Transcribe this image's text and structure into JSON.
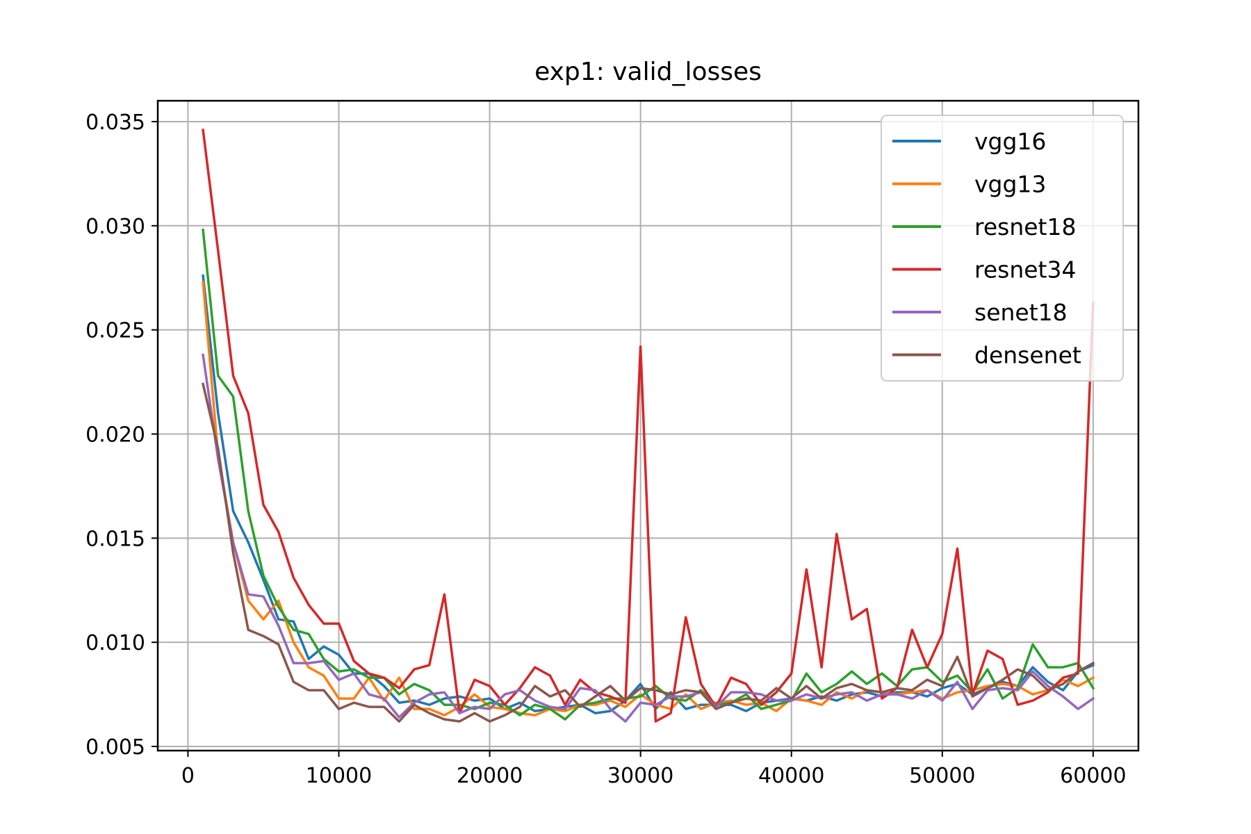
{
  "chart_data": {
    "type": "line",
    "title": "exp1: valid_losses",
    "xlabel": "",
    "ylabel": "",
    "xlim": [
      -2000,
      63000
    ],
    "ylim": [
      0.0048,
      0.036
    ],
    "xticks": [
      0,
      10000,
      20000,
      30000,
      40000,
      50000,
      60000
    ],
    "xtick_labels": [
      "0",
      "10000",
      "20000",
      "30000",
      "40000",
      "50000",
      "60000"
    ],
    "yticks": [
      0.005,
      0.01,
      0.015,
      0.02,
      0.025,
      0.03,
      0.035
    ],
    "ytick_labels": [
      "0.005",
      "0.010",
      "0.015",
      "0.020",
      "0.025",
      "0.030",
      "0.035"
    ],
    "grid": true,
    "legend_position": "top-right",
    "x": [
      1000,
      2000,
      3000,
      4000,
      5000,
      6000,
      7000,
      8000,
      9000,
      10000,
      11000,
      12000,
      13000,
      14000,
      15000,
      16000,
      17000,
      18000,
      19000,
      20000,
      21000,
      22000,
      23000,
      24000,
      25000,
      26000,
      27000,
      28000,
      29000,
      30000,
      31000,
      32000,
      33000,
      34000,
      35000,
      36000,
      37000,
      38000,
      39000,
      40000,
      41000,
      42000,
      43000,
      44000,
      45000,
      46000,
      47000,
      48000,
      49000,
      50000,
      51000,
      52000,
      53000,
      54000,
      55000,
      56000,
      57000,
      58000,
      59000,
      60000
    ],
    "series": [
      {
        "name": "vgg16",
        "color": "#1f77b4",
        "values": [
          0.0276,
          0.021,
          0.0163,
          0.0148,
          0.013,
          0.0111,
          0.011,
          0.0092,
          0.0098,
          0.0094,
          0.0085,
          0.0085,
          0.0079,
          0.0071,
          0.0072,
          0.007,
          0.0073,
          0.0074,
          0.0072,
          0.0073,
          0.0068,
          0.0071,
          0.0067,
          0.0068,
          0.0069,
          0.007,
          0.0066,
          0.0067,
          0.0072,
          0.008,
          0.0068,
          0.0076,
          0.0068,
          0.007,
          0.007,
          0.007,
          0.0067,
          0.0071,
          0.0072,
          0.0073,
          0.0072,
          0.0074,
          0.0072,
          0.0075,
          0.0076,
          0.0074,
          0.0076,
          0.0076,
          0.0074,
          0.0078,
          0.008,
          0.0075,
          0.0078,
          0.0081,
          0.0079,
          0.0088,
          0.0081,
          0.0077,
          0.0086,
          0.0089
        ]
      },
      {
        "name": "vgg13",
        "color": "#ff7f0e",
        "values": [
          0.0273,
          0.019,
          0.0148,
          0.012,
          0.0111,
          0.012,
          0.01,
          0.0088,
          0.0084,
          0.0073,
          0.0073,
          0.0083,
          0.0072,
          0.0083,
          0.0068,
          0.0068,
          0.0065,
          0.0069,
          0.0075,
          0.0069,
          0.0068,
          0.0066,
          0.0065,
          0.0068,
          0.0067,
          0.007,
          0.007,
          0.0072,
          0.0069,
          0.0075,
          0.007,
          0.0068,
          0.0075,
          0.0068,
          0.0071,
          0.0072,
          0.007,
          0.0071,
          0.0067,
          0.0073,
          0.0072,
          0.007,
          0.0076,
          0.0073,
          0.0077,
          0.0076,
          0.0075,
          0.0076,
          0.0077,
          0.0073,
          0.0076,
          0.0077,
          0.0079,
          0.008,
          0.0079,
          0.0075,
          0.0077,
          0.0082,
          0.0079,
          0.0083
        ]
      },
      {
        "name": "resnet18",
        "color": "#2ca02c",
        "values": [
          0.0298,
          0.0228,
          0.0218,
          0.0163,
          0.0132,
          0.0117,
          0.0106,
          0.0104,
          0.0092,
          0.0086,
          0.0087,
          0.0083,
          0.0083,
          0.0075,
          0.008,
          0.0077,
          0.007,
          0.007,
          0.0068,
          0.0071,
          0.007,
          0.0065,
          0.007,
          0.0068,
          0.0063,
          0.007,
          0.0071,
          0.0073,
          0.0073,
          0.0074,
          0.0079,
          0.0073,
          0.0072,
          0.0077,
          0.007,
          0.0071,
          0.0075,
          0.0068,
          0.007,
          0.0072,
          0.0085,
          0.0076,
          0.008,
          0.0086,
          0.008,
          0.0085,
          0.0079,
          0.0087,
          0.0088,
          0.0081,
          0.0084,
          0.0076,
          0.0087,
          0.0073,
          0.0078,
          0.0099,
          0.0088,
          0.0088,
          0.009,
          0.0078
        ]
      },
      {
        "name": "resnet34",
        "color": "#d62728",
        "values": [
          0.0346,
          0.0288,
          0.0228,
          0.021,
          0.0166,
          0.0153,
          0.0131,
          0.0118,
          0.0109,
          0.0109,
          0.0091,
          0.0085,
          0.0083,
          0.0078,
          0.0087,
          0.0089,
          0.0123,
          0.0066,
          0.0082,
          0.0079,
          0.007,
          0.0078,
          0.0088,
          0.0084,
          0.007,
          0.0082,
          0.0076,
          0.0074,
          0.0071,
          0.0242,
          0.0062,
          0.0066,
          0.0112,
          0.008,
          0.0069,
          0.0083,
          0.008,
          0.007,
          0.0076,
          0.0085,
          0.0135,
          0.0088,
          0.0152,
          0.0111,
          0.0116,
          0.0073,
          0.0078,
          0.0106,
          0.0088,
          0.0104,
          0.0145,
          0.0075,
          0.0096,
          0.0092,
          0.007,
          0.0072,
          0.0076,
          0.0083,
          0.0085,
          0.0263
        ]
      },
      {
        "name": "senet18",
        "color": "#9467bd",
        "values": [
          0.0238,
          0.0188,
          0.0148,
          0.0123,
          0.0122,
          0.0108,
          0.009,
          0.009,
          0.0091,
          0.0082,
          0.0085,
          0.0075,
          0.0073,
          0.0064,
          0.0071,
          0.0075,
          0.0076,
          0.0066,
          0.0069,
          0.0068,
          0.0075,
          0.0077,
          0.0072,
          0.0069,
          0.0068,
          0.0078,
          0.0077,
          0.0068,
          0.0062,
          0.0071,
          0.007,
          0.0074,
          0.0074,
          0.0076,
          0.0069,
          0.0076,
          0.0076,
          0.0075,
          0.0072,
          0.0072,
          0.0075,
          0.0073,
          0.0075,
          0.0076,
          0.0072,
          0.0075,
          0.0075,
          0.0073,
          0.0077,
          0.0072,
          0.0081,
          0.0068,
          0.0077,
          0.0078,
          0.0077,
          0.0086,
          0.0079,
          0.0074,
          0.0068,
          0.0073
        ]
      },
      {
        "name": "densenet",
        "color": "#8c564b",
        "values": [
          0.0224,
          0.0193,
          0.0143,
          0.0106,
          0.0103,
          0.0099,
          0.0081,
          0.0077,
          0.0077,
          0.0068,
          0.0071,
          0.0069,
          0.0069,
          0.0062,
          0.007,
          0.0066,
          0.0063,
          0.0062,
          0.0066,
          0.0062,
          0.0065,
          0.0069,
          0.0079,
          0.0074,
          0.0077,
          0.0069,
          0.0074,
          0.0079,
          0.0072,
          0.0078,
          0.0077,
          0.0075,
          0.0077,
          0.0076,
          0.0068,
          0.0071,
          0.0073,
          0.0072,
          0.0078,
          0.0073,
          0.0079,
          0.0073,
          0.0078,
          0.008,
          0.0077,
          0.0076,
          0.0078,
          0.0077,
          0.0082,
          0.0079,
          0.0093,
          0.0074,
          0.0078,
          0.0082,
          0.0087,
          0.0084,
          0.0077,
          0.008,
          0.0086,
          0.009
        ]
      }
    ]
  }
}
